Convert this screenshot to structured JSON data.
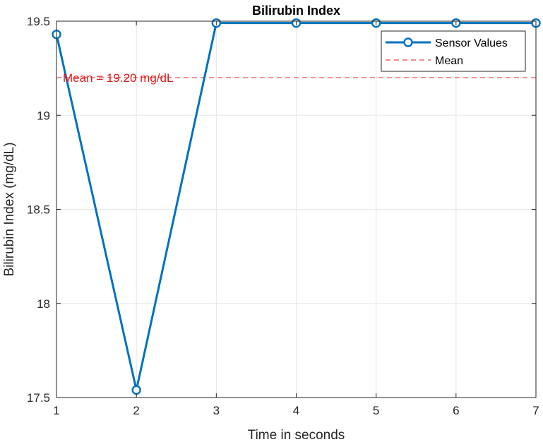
{
  "chart_data": {
    "type": "line",
    "title": "Bilirubin Index",
    "xlabel": "Time in seconds",
    "ylabel": "Bilirubin Index (mg/dL)",
    "xlim": [
      1,
      7
    ],
    "ylim": [
      17.5,
      19.5
    ],
    "xticks": [
      "1",
      "2",
      "3",
      "4",
      "5",
      "6",
      "7"
    ],
    "yticks": [
      "17.5",
      "18",
      "18.5",
      "19",
      "19.5"
    ],
    "x": [
      1,
      2,
      3,
      4,
      5,
      6,
      7
    ],
    "series": [
      {
        "name": "Sensor Values",
        "values": [
          19.43,
          17.54,
          19.49,
          19.49,
          19.49,
          19.49,
          19.49
        ],
        "color": "#0072BD",
        "marker": "circle"
      }
    ],
    "mean": {
      "name": "Mean",
      "value": 19.2,
      "label": "Mean = 19.20 mg/dL",
      "color": "#E41A1C",
      "style": "dashed"
    },
    "grid": true,
    "legend_position": "top-right"
  }
}
